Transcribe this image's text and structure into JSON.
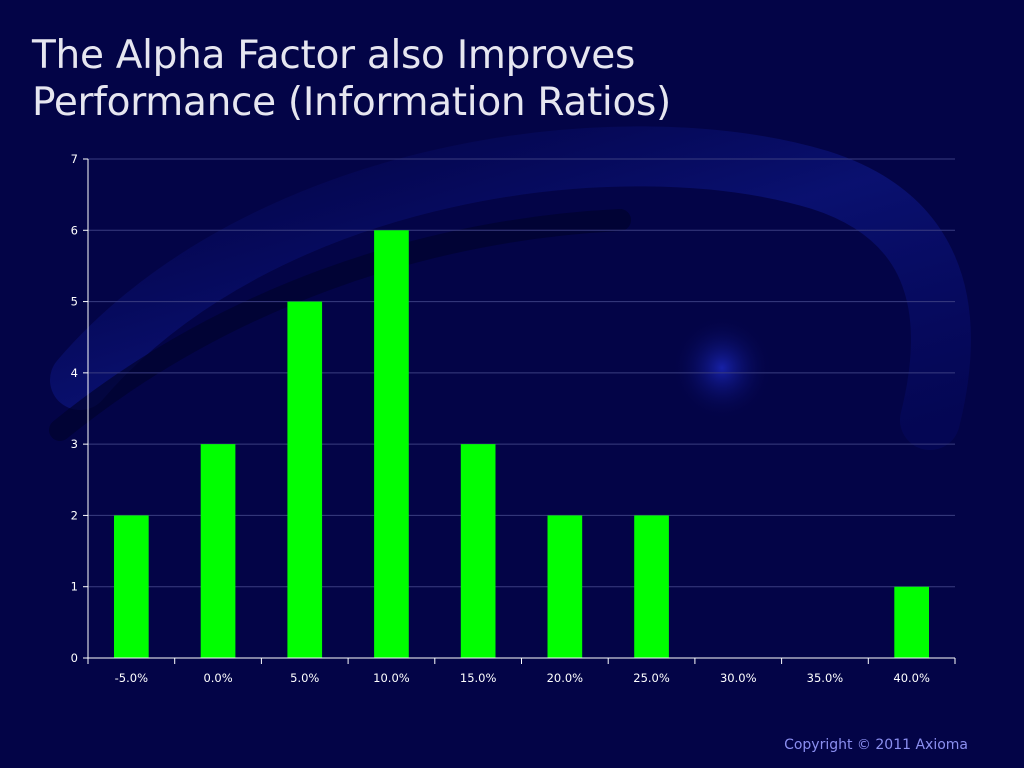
{
  "slide": {
    "title_line1": "The Alpha Factor also Improves",
    "title_line2": "Performance (Information Ratios)",
    "copyright": "Copyright © 2011 Axioma"
  },
  "colors": {
    "background": "#030447",
    "bar": "#00ff00",
    "gridline": "#3a3d80",
    "axis": "#ffffff",
    "title": "#e6e6f0",
    "copyright": "#8b8ff0"
  },
  "chart_data": {
    "type": "bar",
    "categories": [
      "-5.0%",
      "0.0%",
      "5.0%",
      "10.0%",
      "15.0%",
      "20.0%",
      "25.0%",
      "30.0%",
      "35.0%",
      "40.0%"
    ],
    "values": [
      2,
      3,
      5,
      6,
      3,
      2,
      2,
      0,
      0,
      1
    ],
    "title": "",
    "xlabel": "",
    "ylabel": "",
    "ylim": [
      0,
      7
    ],
    "yticks": [
      "0",
      "1",
      "2",
      "3",
      "4",
      "5",
      "6",
      "7"
    ],
    "grid": true,
    "legend": "none"
  }
}
